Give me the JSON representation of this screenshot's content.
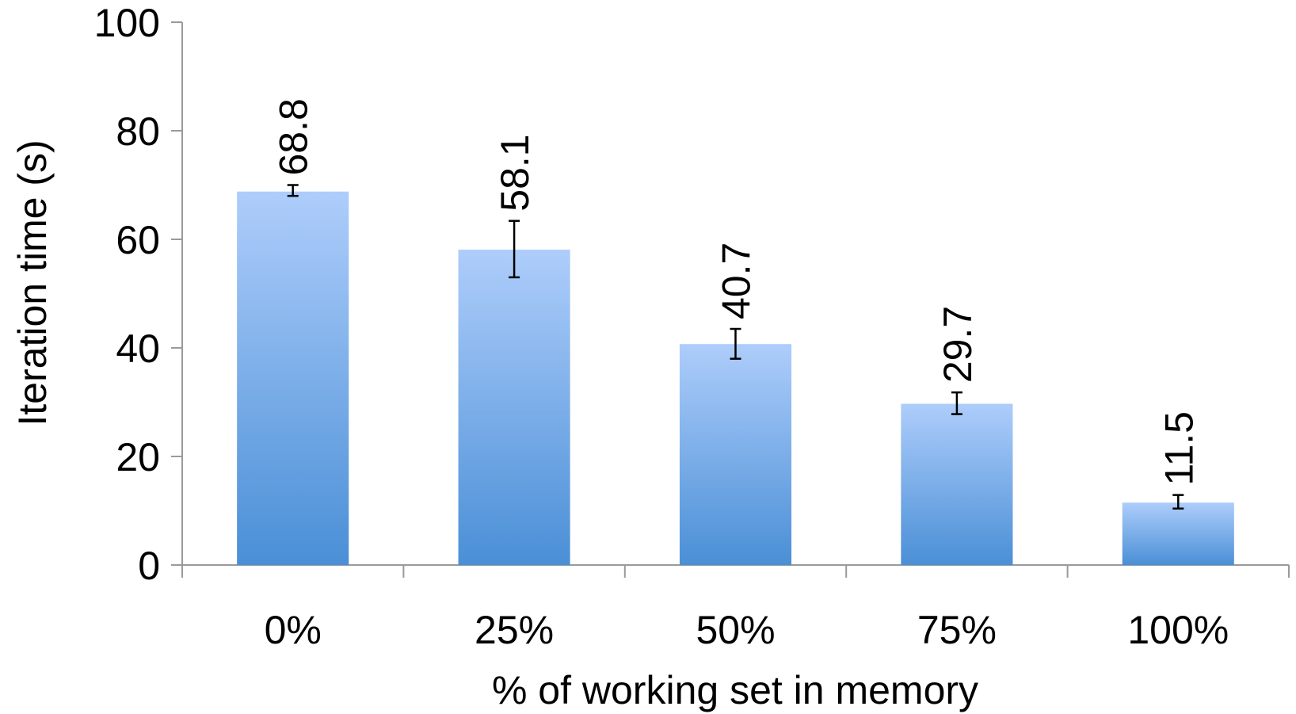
{
  "chart_data": {
    "type": "bar",
    "title": "",
    "xlabel": "% of working set in memory",
    "ylabel": "Iteration time (s)",
    "categories": [
      "0%",
      "25%",
      "50%",
      "75%",
      "100%"
    ],
    "values": [
      68.8,
      58.1,
      40.7,
      29.7,
      11.5
    ],
    "data_labels": [
      "68.8",
      "58.1",
      "40.7",
      "29.7",
      "11.5"
    ],
    "error_bars": [
      [
        68.0,
        70.0
      ],
      [
        53.0,
        63.4
      ],
      [
        38.0,
        43.5
      ],
      [
        27.8,
        31.8
      ],
      [
        10.4,
        12.9
      ]
    ],
    "ylim": [
      0,
      100
    ],
    "yticks": [
      0,
      20,
      40,
      60,
      80,
      100
    ],
    "ytick_labels": [
      "0",
      "20",
      "40",
      "60",
      "80",
      "100"
    ],
    "grid": false,
    "legend": "none",
    "bar_color_top": "#aecdfb",
    "bar_color_bottom": "#4a8fd6",
    "axis_color": "#9a9a9a"
  }
}
